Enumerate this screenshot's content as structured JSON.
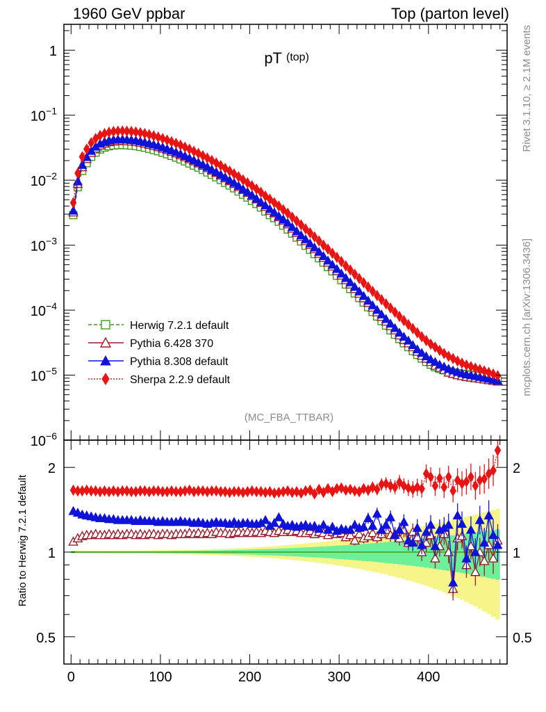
{
  "header": {
    "left": "1960 GeV ppbar",
    "right": "Top (parton level)"
  },
  "side": {
    "rivet": "Rivet 3.1.10, ≥ 2.1M events",
    "mcplots": "mcplots.cern.ch [arXiv:1306.3436]"
  },
  "chart_data": [
    {
      "type": "line",
      "panel": "main",
      "title": "pT",
      "title_sub": "(top)",
      "analysis_label": "(MC_FBA_TTBAR)",
      "xlabel": "",
      "ylabel": "",
      "xlim": [
        -8,
        488
      ],
      "ylim": [
        1e-06,
        2.5
      ],
      "yscale": "log",
      "x_ticks": [
        0,
        100,
        200,
        300,
        400
      ],
      "y_ticks": [
        {
          "base": "10",
          "exp": "−6"
        },
        {
          "base": "10",
          "exp": "−5"
        },
        {
          "base": "10",
          "exp": "−4"
        },
        {
          "base": "10",
          "exp": "−3"
        },
        {
          "base": "10",
          "exp": "−2"
        },
        {
          "base": "10",
          "exp": "−1"
        },
        {
          "base": "1",
          "exp": ""
        }
      ],
      "legend_position": "lower-left",
      "x": [
        2.5,
        7.5,
        12.5,
        17.5,
        22.5,
        27.5,
        32.5,
        37.5,
        42.5,
        47.5,
        52.5,
        57.5,
        62.5,
        67.5,
        72.5,
        77.5,
        82.5,
        87.5,
        92.5,
        97.5,
        102.5,
        107.5,
        112.5,
        117.5,
        122.5,
        127.5,
        132.5,
        137.5,
        142.5,
        147.5,
        152.5,
        157.5,
        162.5,
        167.5,
        172.5,
        177.5,
        182.5,
        187.5,
        192.5,
        197.5,
        202.5,
        207.5,
        212.5,
        217.5,
        222.5,
        227.5,
        232.5,
        237.5,
        242.5,
        247.5,
        252.5,
        257.5,
        262.5,
        267.5,
        272.5,
        277.5,
        282.5,
        287.5,
        292.5,
        297.5,
        302.5,
        307.5,
        312.5,
        317.5,
        322.5,
        327.5,
        332.5,
        337.5,
        342.5,
        347.5,
        352.5,
        357.5,
        362.5,
        367.5,
        372.5,
        377.5,
        382.5,
        387.5,
        392.5,
        397.5,
        402.5,
        407.5,
        412.5,
        417.5,
        422.5,
        427.5,
        432.5,
        437.5,
        442.5,
        447.5,
        452.5,
        457.5,
        462.5,
        467.5,
        472.5,
        477.5
      ],
      "series": [
        {
          "name": "Herwig 7.2.1 default",
          "color": "#409a1f",
          "marker": "open-square",
          "line": "dashed",
          "values": [
            0.0029,
            0.0078,
            0.0139,
            0.0183,
            0.0229,
            0.0266,
            0.0297,
            0.0318,
            0.0333,
            0.0342,
            0.0346,
            0.0348,
            0.0345,
            0.0341,
            0.0335,
            0.0326,
            0.0316,
            0.0304,
            0.0292,
            0.0279,
            0.0265,
            0.0251,
            0.0237,
            0.0223,
            0.0209,
            0.0195,
            0.0181,
            0.0168,
            0.0156,
            0.0144,
            0.0132,
            0.0121,
            0.0111,
            0.0101,
            0.0091,
            0.0083,
            0.0075,
            0.0067,
            0.006,
            0.0054,
            0.0048,
            0.0043,
            0.0038,
            0.0033,
            0.0029,
            0.0026,
            0.0023,
            0.002,
            0.00174,
            0.00151,
            0.00131,
            0.00114,
            0.00098,
            0.00085,
            0.00073,
            0.00063,
            0.00054,
            0.00046,
            0.000396,
            0.000339,
            0.00029,
            0.000248,
            0.000212,
            0.000181,
            0.000154,
            0.000131,
            0.000111,
            9.4e-05,
            8e-05,
            6.8e-05,
            5.8e-05,
            4.9e-05,
            4.2e-05,
            3.6e-05,
            3.1e-05,
            2.7e-05,
            2.35e-05,
            2.05e-05,
            1.8e-05,
            1.6e-05,
            1.45e-05,
            1.33e-05,
            1.25e-05,
            1.19e-05,
            1.14e-05,
            1.1e-05,
            1.07e-05,
            1.05e-05,
            1.03e-05,
            1.01e-05,
            9.9e-06,
            9.7e-06,
            9.5e-06,
            9.2e-06,
            8.8e-06,
            8.3e-06
          ]
        },
        {
          "name": "Pythia 6.428 370",
          "color": "#9a1c2c",
          "marker": "open-triangle",
          "line": "solid",
          "values": [
            0.0032,
            0.0088,
            0.0159,
            0.0212,
            0.0264,
            0.0308,
            0.0343,
            0.0367,
            0.0385,
            0.0395,
            0.04,
            0.0402,
            0.0399,
            0.0395,
            0.0388,
            0.0378,
            0.0366,
            0.0352,
            0.0338,
            0.0323,
            0.0307,
            0.0291,
            0.0275,
            0.0259,
            0.0243,
            0.0227,
            0.0211,
            0.0196,
            0.0182,
            0.0168,
            0.0154,
            0.0141,
            0.013,
            0.0118,
            0.0107,
            0.0097,
            0.0088,
            0.0079,
            0.0071,
            0.0064,
            0.0057,
            0.0051,
            0.0045,
            0.0039,
            0.0034,
            0.0031,
            0.0027,
            0.0024,
            0.0021,
            0.0018,
            0.00156,
            0.00135,
            0.00116,
            0.00101,
            0.00087,
            0.00074,
            0.00064,
            0.00054,
            0.00047,
            0.0004,
            0.000342,
            0.000291,
            0.000249,
            0.000212,
            0.00018,
            0.000153,
            0.00013,
            0.00011,
            9.3e-05,
            7.9e-05,
            6.7e-05,
            5.7e-05,
            4.9e-05,
            4.1e-05,
            3.5e-05,
            3.1e-05,
            2.7e-05,
            2.3e-05,
            2e-05,
            1.8e-05,
            1.6e-05,
            1.4e-05,
            1.3e-05,
            1.2e-05,
            1.1e-05,
            1.05e-05,
            1e-05,
            9.7e-06,
            9.4e-06,
            9.2e-06,
            9e-06,
            8.8e-06,
            8.6e-06,
            8.4e-06,
            8.2e-06,
            8e-06
          ]
        },
        {
          "name": "Pythia 8.308 default",
          "color": "#0f12d8",
          "marker": "filled-triangle",
          "line": "solid",
          "values": [
            0.0034,
            0.0096,
            0.0172,
            0.0227,
            0.0283,
            0.0328,
            0.0366,
            0.0391,
            0.0409,
            0.0419,
            0.0424,
            0.0425,
            0.0421,
            0.0416,
            0.0408,
            0.0397,
            0.0384,
            0.0369,
            0.0354,
            0.0338,
            0.0321,
            0.0304,
            0.0287,
            0.027,
            0.0253,
            0.0236,
            0.0219,
            0.0203,
            0.0188,
            0.0174,
            0.016,
            0.0146,
            0.0134,
            0.0122,
            0.0111,
            0.01,
            0.0091,
            0.0082,
            0.0073,
            0.0066,
            0.0059,
            0.0052,
            0.0046,
            0.0041,
            0.0036,
            0.0032,
            0.0028,
            0.0025,
            0.0022,
            0.0019,
            0.00164,
            0.00142,
            0.00123,
            0.00106,
            0.00092,
            0.00079,
            0.00068,
            0.00058,
            0.0005,
            0.00043,
            0.000366,
            0.000313,
            0.000268,
            0.000228,
            0.000194,
            0.000165,
            0.00014,
            0.000119,
            0.000101,
            8.6e-05,
            7.3e-05,
            6.2e-05,
            5.3e-05,
            4.5e-05,
            3.9e-05,
            3.4e-05,
            2.9e-05,
            2.5e-05,
            2.2e-05,
            1.95e-05,
            1.75e-05,
            1.6e-05,
            1.45e-05,
            1.35e-05,
            1.25e-05,
            1.18e-05,
            1.12e-05,
            1.07e-05,
            1.03e-05,
            1e-05,
            9.7e-06,
            9.4e-06,
            9.1e-06,
            8.8e-06,
            8.5e-06,
            8.2e-06
          ]
        },
        {
          "name": "Sherpa 2.2.9 default",
          "color": "#e81414",
          "marker": "filled-diamond",
          "line": "dotted",
          "values": [
            0.0045,
            0.0128,
            0.0229,
            0.0301,
            0.0376,
            0.0437,
            0.0487,
            0.0521,
            0.0546,
            0.0561,
            0.0569,
            0.0571,
            0.0567,
            0.0561,
            0.0551,
            0.0537,
            0.0521,
            0.0501,
            0.0481,
            0.046,
            0.0437,
            0.0414,
            0.0391,
            0.0368,
            0.0345,
            0.0322,
            0.03,
            0.0278,
            0.0258,
            0.0238,
            0.0219,
            0.0201,
            0.0184,
            0.0168,
            0.0152,
            0.0138,
            0.0125,
            0.0113,
            0.0101,
            0.0091,
            0.0082,
            0.0073,
            0.0065,
            0.0057,
            0.0051,
            0.0045,
            0.004,
            0.0035,
            0.0031,
            0.0027,
            0.00235,
            0.00205,
            0.00178,
            0.00155,
            0.00134,
            0.00116,
            0.001,
            0.00087,
            0.00075,
            0.00065,
            0.00056,
            0.00048,
            0.000415,
            0.000357,
            0.000307,
            0.000264,
            0.000227,
            0.000195,
            0.000168,
            0.000145,
            0.000125,
            0.000108,
            9.3e-05,
            8e-05,
            6.9e-05,
            6e-05,
            5.2e-05,
            4.5e-05,
            3.9e-05,
            3.4e-05,
            3e-05,
            2.7e-05,
            2.4e-05,
            2.15e-05,
            1.95e-05,
            1.8e-05,
            1.65e-05,
            1.53e-05,
            1.43e-05,
            1.35e-05,
            1.28e-05,
            1.22e-05,
            1.16e-05,
            1.1e-05,
            1.04e-05,
            9.8e-06
          ]
        }
      ]
    },
    {
      "type": "line",
      "panel": "ratio",
      "ylabel": "Ratio to Herwig 7.2.1 default",
      "xlabel": "",
      "xlim": [
        -8,
        488
      ],
      "ylim": [
        0.4,
        2.5
      ],
      "yscale": "log",
      "x_ticks": [
        0,
        100,
        200,
        300,
        400
      ],
      "y_ticks": [
        "0.5",
        "1",
        "2"
      ],
      "reference": 1,
      "band_inner": "#6cf09a",
      "band_outer": "#f5f58a",
      "series": [
        {
          "name": "Pythia 6.428 370",
          "values": [
            1.09,
            1.12,
            1.14,
            1.15,
            1.15,
            1.16,
            1.15,
            1.15,
            1.16,
            1.15,
            1.16,
            1.15,
            1.16,
            1.16,
            1.15,
            1.16,
            1.15,
            1.16,
            1.16,
            1.15,
            1.16,
            1.16,
            1.15,
            1.16,
            1.16,
            1.16,
            1.17,
            1.16,
            1.17,
            1.16,
            1.17,
            1.16,
            1.18,
            1.17,
            1.17,
            1.16,
            1.17,
            1.18,
            1.17,
            1.18,
            1.17,
            1.18,
            1.17,
            1.19,
            1.18,
            1.17,
            1.19,
            1.18,
            1.2,
            1.18,
            1.19,
            1.17,
            1.17,
            1.19,
            1.16,
            1.18,
            1.17,
            1.15,
            1.18,
            1.16,
            1.17,
            1.13,
            1.15,
            1.1,
            1.16,
            1.12,
            1.14,
            1.17,
            1.13,
            1.16,
            1.2,
            1.15,
            1.16,
            1.12,
            1.2,
            1.08,
            1.18,
            1.13,
            1.0,
            1.08,
            1.15,
            0.95,
            1.05,
            1.16,
            1.0,
            0.74,
            1.12,
            1.14,
            0.9,
            1.05,
            0.85,
            1.0,
            0.93,
            1.06,
            0.95,
            1.1
          ]
        },
        {
          "name": "Pythia 8.308 default",
          "values": [
            1.4,
            1.38,
            1.36,
            1.35,
            1.34,
            1.33,
            1.32,
            1.32,
            1.31,
            1.31,
            1.3,
            1.3,
            1.3,
            1.3,
            1.29,
            1.3,
            1.29,
            1.29,
            1.29,
            1.28,
            1.29,
            1.28,
            1.28,
            1.28,
            1.29,
            1.28,
            1.28,
            1.27,
            1.28,
            1.27,
            1.26,
            1.27,
            1.28,
            1.27,
            1.27,
            1.26,
            1.28,
            1.26,
            1.27,
            1.27,
            1.26,
            1.26,
            1.27,
            1.3,
            1.24,
            1.27,
            1.33,
            1.26,
            1.24,
            1.25,
            1.23,
            1.24,
            1.25,
            1.23,
            1.24,
            1.21,
            1.25,
            1.2,
            1.23,
            1.19,
            1.21,
            1.2,
            1.2,
            1.25,
            1.22,
            1.23,
            1.32,
            1.24,
            1.37,
            1.2,
            1.25,
            1.33,
            1.15,
            1.2,
            1.28,
            1.1,
            1.08,
            1.22,
            1.06,
            1.18,
            1.25,
            1.05,
            1.2,
            1.22,
            1.25,
            0.78,
            1.35,
            1.26,
            0.95,
            1.2,
            1.0,
            1.3,
            1.08,
            1.35,
            1.15,
            1.06
          ]
        },
        {
          "name": "Sherpa 2.2.9 default",
          "values": [
            1.66,
            1.65,
            1.65,
            1.66,
            1.65,
            1.65,
            1.64,
            1.65,
            1.64,
            1.65,
            1.64,
            1.65,
            1.65,
            1.64,
            1.64,
            1.65,
            1.65,
            1.64,
            1.65,
            1.65,
            1.64,
            1.64,
            1.65,
            1.64,
            1.64,
            1.65,
            1.66,
            1.64,
            1.65,
            1.65,
            1.64,
            1.65,
            1.65,
            1.64,
            1.64,
            1.63,
            1.64,
            1.64,
            1.63,
            1.64,
            1.65,
            1.64,
            1.64,
            1.63,
            1.64,
            1.62,
            1.63,
            1.64,
            1.65,
            1.63,
            1.64,
            1.62,
            1.65,
            1.66,
            1.61,
            1.67,
            1.63,
            1.68,
            1.64,
            1.68,
            1.69,
            1.66,
            1.67,
            1.65,
            1.64,
            1.68,
            1.66,
            1.7,
            1.67,
            1.74,
            1.75,
            1.72,
            1.7,
            1.77,
            1.72,
            1.69,
            1.67,
            1.7,
            1.68,
            1.9,
            1.85,
            1.72,
            1.83,
            1.7,
            1.85,
            1.65,
            1.8,
            1.75,
            1.78,
            1.85,
            1.72,
            1.8,
            1.82,
            1.9,
            1.95,
            2.3
          ]
        }
      ]
    }
  ]
}
